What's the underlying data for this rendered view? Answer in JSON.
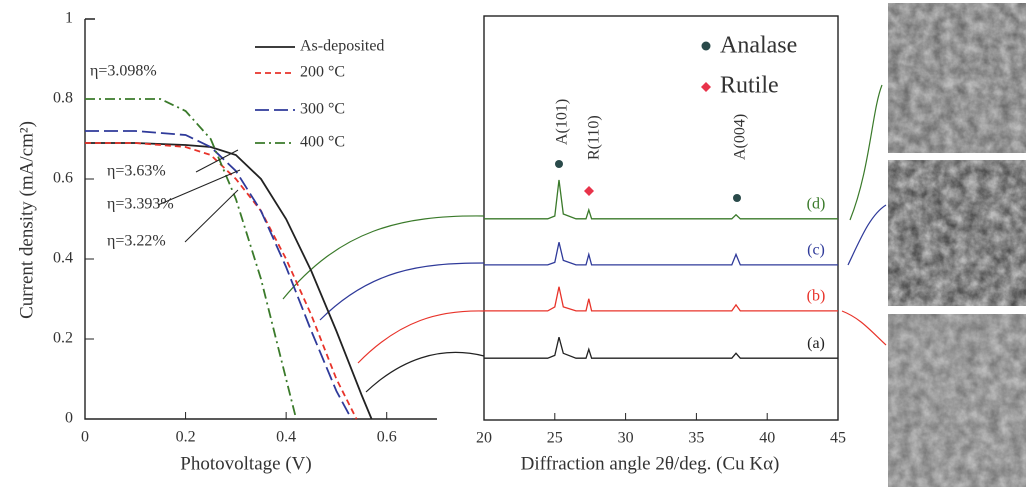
{
  "chart_data": [
    {
      "type": "line",
      "xlabel": "Photovoltage (V)",
      "ylabel": "Current density (mA/cm²)",
      "xlim": [
        0,
        0.7
      ],
      "ylim": [
        0,
        1
      ],
      "xticks": [
        0,
        0.2,
        0.4,
        0.6
      ],
      "yticks": [
        0,
        0.2,
        0.4,
        0.6,
        0.8,
        1
      ],
      "series": [
        {
          "name": "As-deposited",
          "color": "#222222",
          "x": [
            0,
            0.1,
            0.2,
            0.25,
            0.3,
            0.35,
            0.4,
            0.45,
            0.5,
            0.55,
            0.57
          ],
          "values": [
            0.69,
            0.69,
            0.685,
            0.68,
            0.66,
            0.6,
            0.5,
            0.37,
            0.22,
            0.06,
            0
          ]
        },
        {
          "name": "200 °C",
          "color": "#e8332a",
          "x": [
            0,
            0.1,
            0.2,
            0.25,
            0.3,
            0.35,
            0.4,
            0.45,
            0.5,
            0.54
          ],
          "values": [
            0.69,
            0.69,
            0.68,
            0.66,
            0.6,
            0.52,
            0.4,
            0.26,
            0.1,
            0
          ]
        },
        {
          "name": "300 °C",
          "color": "#2f3a9a",
          "x": [
            0,
            0.1,
            0.2,
            0.25,
            0.3,
            0.35,
            0.4,
            0.45,
            0.5,
            0.53
          ],
          "values": [
            0.72,
            0.72,
            0.71,
            0.68,
            0.62,
            0.52,
            0.38,
            0.22,
            0.07,
            0
          ]
        },
        {
          "name": "400 °C",
          "color": "#3a7a2a",
          "x": [
            0,
            0.1,
            0.15,
            0.2,
            0.25,
            0.3,
            0.35,
            0.4,
            0.42
          ],
          "values": [
            0.8,
            0.8,
            0.8,
            0.77,
            0.7,
            0.55,
            0.35,
            0.1,
            0
          ]
        }
      ],
      "annotations": [
        "η=3.098%",
        "η=3.63%",
        "η=3.393%",
        "η=3.22%"
      ]
    },
    {
      "type": "line",
      "xlabel": "Diffraction angle 2θ/deg. (Cu Kα)",
      "xlim": [
        20,
        45
      ],
      "ylim": [
        0,
        100
      ],
      "xticks": [
        20,
        25,
        30,
        35,
        40,
        45
      ],
      "x": [
        20,
        24.5,
        25.0,
        25.3,
        25.6,
        26.5,
        27.2,
        27.4,
        27.6,
        30,
        37.5,
        37.8,
        38.1,
        45
      ],
      "series": [
        {
          "name": "(a)",
          "color": "#222222",
          "values": [
            15.3,
            15.3,
            16,
            20.5,
            16.5,
            15.3,
            15.3,
            17.5,
            15.3,
            15.3,
            15.3,
            16.5,
            15.3,
            15.3
          ]
        },
        {
          "name": "(b)",
          "color": "#e8332a",
          "values": [
            27,
            27,
            28,
            33,
            28,
            27,
            27,
            30,
            27,
            27,
            27,
            28.5,
            27,
            27
          ]
        },
        {
          "name": "(c)",
          "color": "#2f3a9a",
          "values": [
            38.4,
            38.4,
            39,
            44,
            39.5,
            38.4,
            38.4,
            41,
            38.4,
            38.4,
            38.4,
            41,
            38.4,
            38.4
          ]
        },
        {
          "name": "(d)",
          "color": "#3a7a2a",
          "values": [
            49.8,
            49.8,
            50.5,
            59.4,
            51,
            49.8,
            49.8,
            52,
            49.8,
            49.8,
            49.8,
            50.8,
            49.8,
            49.8
          ]
        }
      ],
      "annotations": [
        "A(101)",
        "R(110)",
        "A(004)"
      ],
      "legend": [
        "Analase",
        "Rutile"
      ]
    }
  ]
}
